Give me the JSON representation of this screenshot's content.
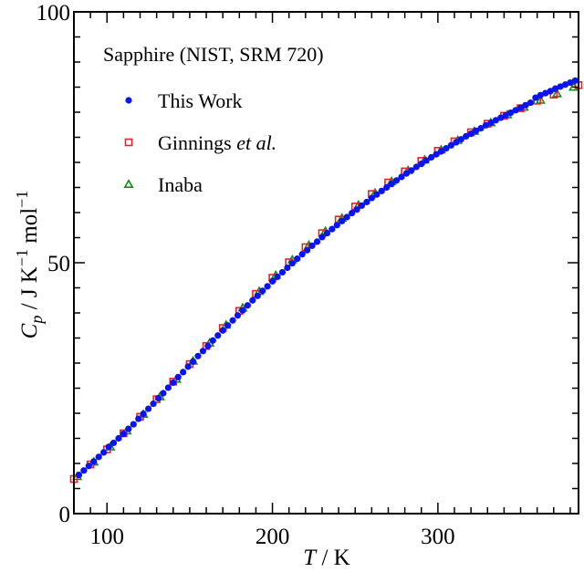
{
  "chart_data": {
    "type": "scatter",
    "title": "Sapphire (NIST, SRM 720)",
    "xlabel": {
      "var": "T",
      "unit": " / K"
    },
    "ylabel": {
      "var": "C",
      "sub": "p",
      "unit": " / J K",
      "sup1": "−1",
      "unit2": " mol",
      "sup2": "−1"
    },
    "xlim": [
      80,
      385
    ],
    "ylim": [
      0,
      100
    ],
    "x_major_ticks": [
      100,
      200,
      300
    ],
    "x_major_labels": [
      "100",
      "200",
      "300"
    ],
    "x_minor_step": 10,
    "y_major_ticks": [
      0,
      50,
      100
    ],
    "y_major_labels": [
      "0",
      "50",
      "100"
    ],
    "y_minor_step": 5,
    "grid": false,
    "legend_position": "top-left",
    "series": [
      {
        "name": "This Work",
        "name_parts": [
          "This Work"
        ],
        "marker": "circle",
        "color": "#0a14f0",
        "x": [
          83,
          86,
          89,
          92,
          95,
          98,
          101,
          104,
          107,
          110,
          113,
          116,
          119,
          122,
          125,
          128,
          131,
          134,
          137,
          140,
          143,
          146,
          149,
          152,
          155,
          158,
          161,
          164,
          167,
          170,
          173,
          176,
          179,
          182,
          185,
          188,
          191,
          194,
          197,
          200,
          203,
          206,
          209,
          212,
          215,
          218,
          221,
          224,
          227,
          230,
          233,
          236,
          239,
          242,
          245,
          248,
          251,
          254,
          257,
          260,
          263,
          266,
          269,
          272,
          275,
          278,
          281,
          284,
          287,
          290,
          293,
          296,
          299,
          302,
          305,
          308,
          311,
          314,
          317,
          320,
          323,
          326,
          329,
          332,
          335,
          338,
          341,
          344,
          347,
          350,
          353,
          356,
          359,
          362,
          365,
          368,
          371,
          374,
          377,
          380,
          383
        ],
        "y": [
          7.7,
          8.6,
          9.5,
          10.4,
          11.3,
          12.2,
          13.3,
          14.1,
          15.0,
          15.9,
          16.9,
          17.8,
          18.9,
          19.9,
          20.9,
          21.9,
          23.0,
          24.0,
          25.1,
          26.1,
          27.2,
          28.2,
          29.3,
          30.3,
          31.4,
          32.4,
          33.4,
          34.5,
          35.5,
          36.5,
          37.5,
          38.5,
          39.5,
          40.5,
          41.5,
          42.5,
          43.4,
          44.4,
          45.3,
          46.3,
          47.2,
          48.1,
          49.0,
          49.9,
          50.8,
          51.7,
          52.5,
          53.4,
          54.2,
          55.1,
          55.9,
          56.7,
          57.5,
          58.3,
          59.1,
          59.9,
          60.6,
          61.4,
          62.1,
          62.9,
          63.6,
          64.3,
          65.0,
          65.7,
          66.4,
          67.1,
          67.8,
          68.4,
          69.1,
          69.7,
          70.4,
          71.0,
          71.6,
          72.2,
          72.8,
          73.4,
          74.0,
          74.6,
          75.2,
          75.7,
          76.3,
          76.8,
          77.4,
          77.9,
          78.4,
          78.9,
          79.4,
          79.9,
          80.4,
          80.9,
          81.4,
          81.9,
          82.9,
          83.4,
          83.8,
          84.2,
          84.7,
          85.1,
          85.5,
          85.9,
          86.3
        ]
      },
      {
        "name": "Ginnings et al.",
        "name_parts": [
          "Ginnings ",
          "et al."
        ],
        "marker": "square-open",
        "color": "#e8202a",
        "x": [
          80,
          90,
          100,
          110,
          120,
          130,
          140,
          150,
          160,
          170,
          180,
          190,
          200,
          210,
          220,
          230,
          240,
          250,
          260,
          270,
          280,
          290,
          300,
          310,
          320,
          330,
          340,
          350,
          360,
          370,
          385
        ],
        "y": [
          6.9,
          9.8,
          12.8,
          16.0,
          19.3,
          22.8,
          26.3,
          29.8,
          33.4,
          37.0,
          40.4,
          43.8,
          47.0,
          50.1,
          53.1,
          55.9,
          58.6,
          61.2,
          63.7,
          66.0,
          68.2,
          70.3,
          72.3,
          74.2,
          76.0,
          77.7,
          79.3,
          80.8,
          82.3,
          83.5,
          85.4
        ]
      },
      {
        "name": "Inaba",
        "name_parts": [
          "Inaba"
        ],
        "marker": "triangle-open",
        "color": "#1a8a1a",
        "x": [
          82,
          92,
          102,
          112,
          122,
          132,
          142,
          152,
          162,
          172,
          182,
          192,
          202,
          212,
          222,
          232,
          242,
          252,
          262,
          272,
          282,
          292,
          302,
          312,
          322,
          332,
          342,
          352,
          362,
          372,
          382
        ],
        "y": [
          7.4,
          10.3,
          13.3,
          16.5,
          19.8,
          23.3,
          26.8,
          30.4,
          34.0,
          37.6,
          41.0,
          44.3,
          47.5,
          50.6,
          53.5,
          56.3,
          58.9,
          61.5,
          63.9,
          66.2,
          68.4,
          70.5,
          72.5,
          74.4,
          76.2,
          77.9,
          79.5,
          81.0,
          82.4,
          83.7,
          85.0
        ]
      }
    ]
  }
}
